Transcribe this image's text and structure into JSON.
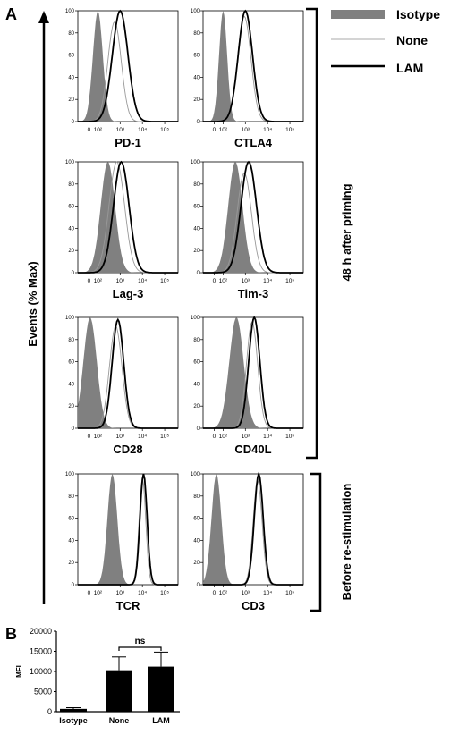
{
  "panel_labels": {
    "a": "A",
    "b": "B"
  },
  "y_axis_label": "Events (% Max)",
  "legend": [
    {
      "label": "Isotype",
      "style": "filled",
      "color": "#808080"
    },
    {
      "label": "None",
      "style": "thin",
      "color": "#aaaaaa"
    },
    {
      "label": "LAM",
      "style": "thick",
      "color": "#000000"
    }
  ],
  "brackets": [
    {
      "label": "48 h after priming"
    },
    {
      "label": "Before re-stimulation"
    }
  ],
  "colors": {
    "isotype_fill": "#808080",
    "none_line": "#999999",
    "lam_line": "#000000"
  },
  "chart_data": [
    {
      "type": "area",
      "title": "PD-1",
      "x_scale": "log",
      "x_ticks": [
        "0",
        "10²",
        "10³",
        "10⁴",
        "10⁵"
      ],
      "y_ticks": [
        "0",
        "20",
        "40",
        "60",
        "80",
        "100"
      ],
      "ylim": [
        0,
        100
      ],
      "series": [
        {
          "name": "Isotype",
          "peak": 2.0,
          "sigma": 0.22,
          "height": 100
        },
        {
          "name": "None",
          "peak": 2.75,
          "sigma": 0.3,
          "height": 90
        },
        {
          "name": "LAM",
          "peak": 3.0,
          "sigma": 0.35,
          "height": 100
        }
      ]
    },
    {
      "type": "area",
      "title": "CTLA4",
      "x_scale": "log",
      "x_ticks": [
        "0",
        "10²",
        "10³",
        "10⁴",
        "10⁵"
      ],
      "y_ticks": [
        "0",
        "20",
        "40",
        "60",
        "80",
        "100"
      ],
      "ylim": [
        0,
        100
      ],
      "series": [
        {
          "name": "Isotype",
          "peak": 2.0,
          "sigma": 0.18,
          "height": 100
        },
        {
          "name": "None",
          "peak": 2.95,
          "sigma": 0.3,
          "height": 95
        },
        {
          "name": "LAM",
          "peak": 3.0,
          "sigma": 0.32,
          "height": 100
        }
      ]
    },
    {
      "type": "area",
      "title": "Lag-3",
      "x_scale": "log",
      "x_ticks": [
        "0",
        "10²",
        "10³",
        "10⁴",
        "10⁵"
      ],
      "y_ticks": [
        "0",
        "20",
        "40",
        "60",
        "80",
        "100"
      ],
      "ylim": [
        0,
        100
      ],
      "series": [
        {
          "name": "Isotype",
          "peak": 2.45,
          "sigma": 0.32,
          "height": 100
        },
        {
          "name": "None",
          "peak": 2.85,
          "sigma": 0.35,
          "height": 100
        },
        {
          "name": "LAM",
          "peak": 3.05,
          "sigma": 0.35,
          "height": 100
        }
      ]
    },
    {
      "type": "area",
      "title": "Tim-3",
      "x_scale": "log",
      "x_ticks": [
        "0",
        "10²",
        "10³",
        "10⁴",
        "10⁵"
      ],
      "y_ticks": [
        "0",
        "20",
        "40",
        "60",
        "80",
        "100"
      ],
      "ylim": [
        0,
        100
      ],
      "series": [
        {
          "name": "Isotype",
          "peak": 2.55,
          "sigma": 0.32,
          "height": 100
        },
        {
          "name": "None",
          "peak": 2.95,
          "sigma": 0.32,
          "height": 90
        },
        {
          "name": "LAM",
          "peak": 3.15,
          "sigma": 0.35,
          "height": 100
        }
      ]
    },
    {
      "type": "area",
      "title": "CD28",
      "x_scale": "log",
      "x_ticks": [
        "0",
        "10²",
        "10³",
        "10⁴",
        "10⁵"
      ],
      "y_ticks": [
        "0",
        "20",
        "40",
        "60",
        "80",
        "100"
      ],
      "ylim": [
        0,
        100
      ],
      "series": [
        {
          "name": "Isotype",
          "peak": 1.65,
          "sigma": 0.3,
          "height": 100
        },
        {
          "name": "None",
          "peak": 2.8,
          "sigma": 0.28,
          "height": 92
        },
        {
          "name": "LAM",
          "peak": 2.9,
          "sigma": 0.26,
          "height": 98
        }
      ]
    },
    {
      "type": "area",
      "title": "CD40L",
      "x_scale": "log",
      "x_ticks": [
        "0",
        "10²",
        "10³",
        "10⁴",
        "10⁵"
      ],
      "y_ticks": [
        "0",
        "20",
        "40",
        "60",
        "80",
        "100"
      ],
      "ylim": [
        0,
        100
      ],
      "series": [
        {
          "name": "Isotype",
          "peak": 2.6,
          "sigma": 0.32,
          "height": 100
        },
        {
          "name": "None",
          "peak": 3.3,
          "sigma": 0.25,
          "height": 96
        },
        {
          "name": "LAM",
          "peak": 3.4,
          "sigma": 0.25,
          "height": 100
        }
      ]
    },
    {
      "type": "area",
      "title": "TCR",
      "x_scale": "log",
      "x_ticks": [
        "0",
        "10²",
        "10³",
        "10⁴",
        "10⁵"
      ],
      "y_ticks": [
        "0",
        "20",
        "40",
        "60",
        "80",
        "100"
      ],
      "ylim": [
        0,
        100
      ],
      "series": [
        {
          "name": "Isotype",
          "peak": 2.65,
          "sigma": 0.22,
          "height": 100
        },
        {
          "name": "None",
          "peak": 4.0,
          "sigma": 0.15,
          "height": 96
        },
        {
          "name": "LAM",
          "peak": 4.05,
          "sigma": 0.16,
          "height": 100
        }
      ]
    },
    {
      "type": "area",
      "title": "CD3",
      "x_scale": "log",
      "x_ticks": [
        "0",
        "10²",
        "10³",
        "10⁴",
        "10⁵"
      ],
      "y_ticks": [
        "0",
        "20",
        "40",
        "60",
        "80",
        "100"
      ],
      "ylim": [
        0,
        100
      ],
      "series": [
        {
          "name": "Isotype",
          "peak": 1.7,
          "sigma": 0.22,
          "height": 100
        },
        {
          "name": "None",
          "peak": 3.55,
          "sigma": 0.2,
          "height": 94
        },
        {
          "name": "LAM",
          "peak": 3.6,
          "sigma": 0.2,
          "height": 100
        }
      ]
    },
    {
      "type": "bar",
      "categories": [
        "Isotype",
        "None",
        "LAM"
      ],
      "values": [
        700,
        10300,
        11200
      ],
      "errors": [
        300,
        3300,
        3600
      ],
      "ylabel": "MFI",
      "ylim": [
        0,
        20000
      ],
      "y_ticks": [
        "0",
        "5000",
        "10000",
        "15000",
        "20000"
      ],
      "annotation": "ns"
    }
  ]
}
